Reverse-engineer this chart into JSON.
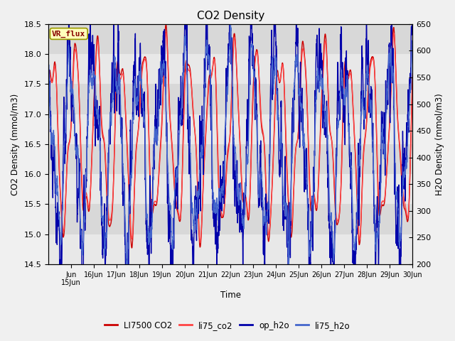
{
  "title": "CO2 Density",
  "xlabel": "Time",
  "ylabel_left": "CO2 Density (mmol/m3)",
  "ylabel_right": "H2O Density (mmol/m3)",
  "ylim_left": [
    14.5,
    18.5
  ],
  "ylim_right": [
    200,
    650
  ],
  "xlim_days": [
    14,
    30
  ],
  "xtick_labels": [
    "Jun 15",
    "Jun 16",
    "Jun 17",
    "Jun 18",
    "Jun 19",
    "Jun 20",
    "Jun 21",
    "Jun 22",
    "Jun 23",
    "Jun 24",
    "Jun 25",
    "Jun 26",
    "Jun 27",
    "Jun 28",
    "Jun 29",
    "Jun 30"
  ],
  "xtick_positions": [
    15,
    16,
    17,
    18,
    19,
    20,
    21,
    22,
    23,
    24,
    25,
    26,
    27,
    28,
    29,
    30
  ],
  "yticks_left": [
    14.5,
    15.0,
    15.5,
    16.0,
    16.5,
    17.0,
    17.5,
    18.0,
    18.5
  ],
  "yticks_right": [
    200,
    250,
    300,
    350,
    400,
    450,
    500,
    550,
    600,
    650
  ],
  "band_colors": [
    "#e8e8e8",
    "#d8d8d8"
  ],
  "fig_bg_color": "#f0f0f0",
  "legend_labels": [
    "LI7500 CO2",
    "li75_co2",
    "op_h2o",
    "li75_h2o"
  ],
  "line_colors_co2": [
    "#cc0000",
    "#ff4444"
  ],
  "line_colors_h2o": [
    "#0000aa",
    "#4466cc"
  ],
  "line_width": 1.0,
  "vr_flux_box_facecolor": "#ffffbb",
  "vr_flux_text_color": "#880000",
  "vr_flux_border_color": "#999900",
  "n_points": 3000
}
